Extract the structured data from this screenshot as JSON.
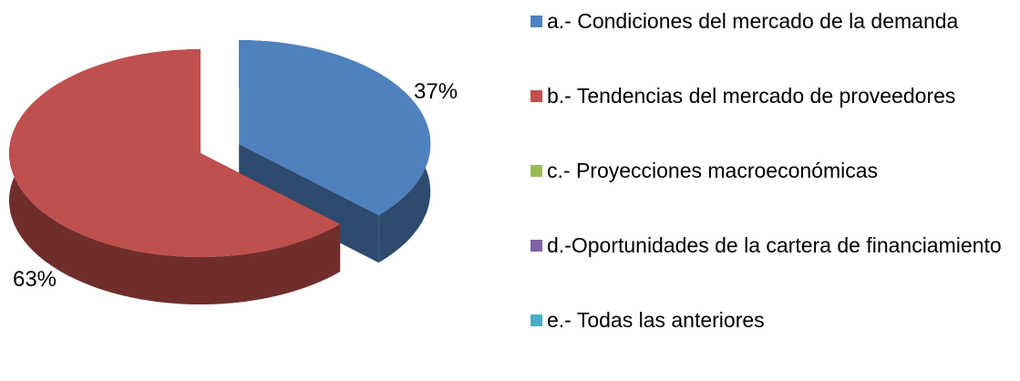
{
  "chart_data": {
    "type": "pie",
    "categories": [
      "a.- Condiciones del mercado de la demanda",
      "b.- Tendencias del mercado de proveedores",
      "c.- Proyecciones macroeconómicas",
      "d.-Oportunidades de la cartera de financiamiento",
      "e.- Todas las anteriores"
    ],
    "values": [
      37,
      63,
      0,
      0,
      0
    ],
    "value_labels": [
      "37%",
      "63%",
      null,
      null,
      null
    ],
    "colors": [
      "#4f81bd",
      "#c0504d",
      "#9bbb59",
      "#8064a2",
      "#4bacc6"
    ],
    "legend": "right"
  }
}
